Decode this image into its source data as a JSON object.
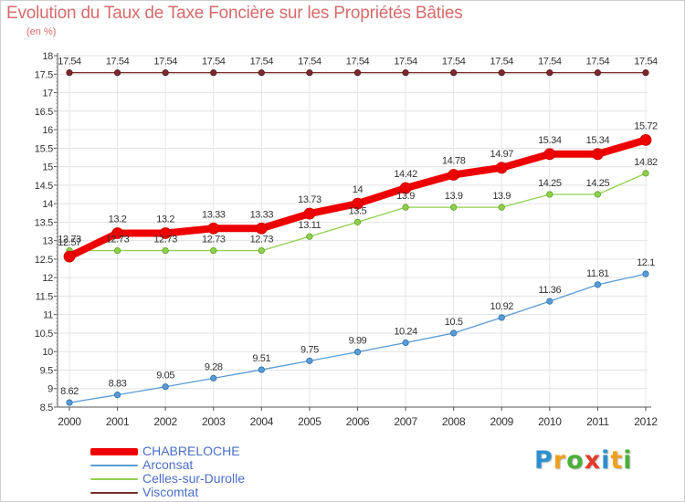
{
  "header": {
    "title": "Evolution du Taux de Taxe Foncière sur les Propriétés Bâties",
    "unit": "(en %)"
  },
  "brand": {
    "letters": [
      {
        "ch": "P",
        "color": "#2d8fd0"
      },
      {
        "ch": "r",
        "color": "#f0a020"
      },
      {
        "ch": "o",
        "color": "#4caf3a"
      },
      {
        "ch": "x",
        "color": "#e53b2b"
      },
      {
        "ch": "i",
        "color": "#2d8fd0"
      },
      {
        "ch": "t",
        "color": "#f0a020"
      },
      {
        "ch": "i",
        "color": "#4caf3a"
      }
    ]
  },
  "chart_data": {
    "type": "line",
    "title": "Evolution du Taux de Taxe Foncière sur les Propriétés Bâties",
    "ylabel": "(en %)",
    "xlabel": "",
    "ylim": [
      8.5,
      18
    ],
    "yticks": [
      "8.5",
      "9",
      "9.5",
      "10",
      "10.5",
      "11",
      "11.5",
      "12",
      "12.5",
      "13",
      "13.5",
      "14",
      "14.5",
      "15",
      "15.5",
      "16",
      "16.5",
      "17",
      "17.5",
      "18"
    ],
    "x": [
      "2000",
      "2001",
      "2002",
      "2003",
      "2004",
      "2005",
      "2006",
      "2007",
      "2008",
      "2009",
      "2010",
      "2011",
      "2012"
    ],
    "series": [
      {
        "name": "CHABRELOCHE",
        "color": "#ee0000",
        "width": 8,
        "marker": 6,
        "values": [
          12.57,
          13.2,
          13.2,
          13.33,
          13.33,
          13.73,
          14,
          14.42,
          14.78,
          14.97,
          15.34,
          15.34,
          15.72
        ],
        "labels": [
          "12.57",
          "13.2",
          "13.2",
          "13.33",
          "13.33",
          "13.73",
          "14",
          "14.42",
          "14.78",
          "14.97",
          "15.34",
          "15.34",
          "15.72"
        ]
      },
      {
        "name": "Arconsat",
        "color": "#5b9bd5",
        "width": 1.3,
        "marker": 3.2,
        "values": [
          8.62,
          8.83,
          9.05,
          9.28,
          9.51,
          9.75,
          9.99,
          10.24,
          10.5,
          10.92,
          11.36,
          11.81,
          12.1
        ],
        "labels": [
          "8.62",
          "8.83",
          "9.05",
          "9.28",
          "9.51",
          "9.75",
          "9.99",
          "10.24",
          "10.5",
          "10.92",
          "11.36",
          "11.81",
          "12.1"
        ]
      },
      {
        "name": "Celles-sur-Durolle",
        "color": "#90d050",
        "width": 1.3,
        "marker": 3.2,
        "values": [
          12.73,
          12.73,
          12.73,
          12.73,
          12.73,
          13.11,
          13.5,
          13.9,
          13.9,
          13.9,
          14.25,
          14.25,
          14.82
        ],
        "labels": [
          "12.73",
          "12.73",
          "12.73",
          "12.73",
          "12.73",
          "13.11",
          "13.5",
          "13.9",
          "13.9",
          "13.9",
          "14.25",
          "14.25",
          "14.82"
        ]
      },
      {
        "name": "Viscomtat",
        "color": "#7a2a2a",
        "width": 1.3,
        "marker": 3.2,
        "values": [
          17.54,
          17.54,
          17.54,
          17.54,
          17.54,
          17.54,
          17.54,
          17.54,
          17.54,
          17.54,
          17.54,
          17.54,
          17.54
        ],
        "labels": [
          "17.54",
          "17.54",
          "17.54",
          "17.54",
          "17.54",
          "17.54",
          "17.54",
          "17.54",
          "17.54",
          "17.54",
          "17.54",
          "17.54",
          "17.54"
        ]
      }
    ],
    "legend": [
      "CHABRELOCHE",
      "Arconsat",
      "Celles-sur-Durolle",
      "Viscomtat"
    ],
    "legend_position": "bottom-left",
    "grid": true
  }
}
